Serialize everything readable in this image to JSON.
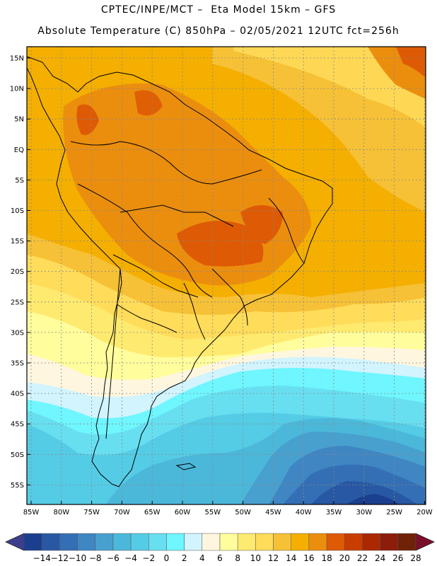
{
  "header": {
    "line1": "CPTEC/INPE/MCT –  Eta Model 15km – GFS",
    "line2": "Absolute Temperature (C) 850hPa – 02/05/2021 12UTC fct=256h"
  },
  "map": {
    "variable": "Absolute Temperature",
    "units": "C",
    "level": "850hPa",
    "lat_labels": [
      "15N",
      "10N",
      "5N",
      "EQ",
      "5S",
      "10S",
      "15S",
      "20S",
      "25S",
      "30S",
      "35S",
      "40S",
      "45S",
      "50S",
      "55S"
    ],
    "lon_labels": [
      "85W",
      "80W",
      "75W",
      "70W",
      "65W",
      "60W",
      "55W",
      "50W",
      "45W",
      "40W",
      "35W",
      "30W",
      "25W",
      "20W"
    ]
  },
  "colorbar": {
    "labels": [
      "-14",
      "-12",
      "-10",
      "-8",
      "-6",
      "-4",
      "-2",
      "0",
      "2",
      "4",
      "6",
      "8",
      "10",
      "12",
      "14",
      "16",
      "18",
      "20",
      "22",
      "24",
      "26",
      "28"
    ],
    "colors": [
      "#1b3f8f",
      "#2858a4",
      "#346fb5",
      "#3f86c3",
      "#48a0cf",
      "#4bb8da",
      "#55cce6",
      "#68dff0",
      "#6ff6ff",
      "#d1f4ff",
      "#fff6df",
      "#fffd9c",
      "#ffea70",
      "#ffdc5a",
      "#f6c136",
      "#f4af00",
      "#eb8e0e",
      "#de5a04",
      "#c83e00",
      "#ab2800",
      "#8c1d0a",
      "#702209"
    ],
    "end_low": "#3d3f8e",
    "end_high": "#7a0f2c"
  }
}
